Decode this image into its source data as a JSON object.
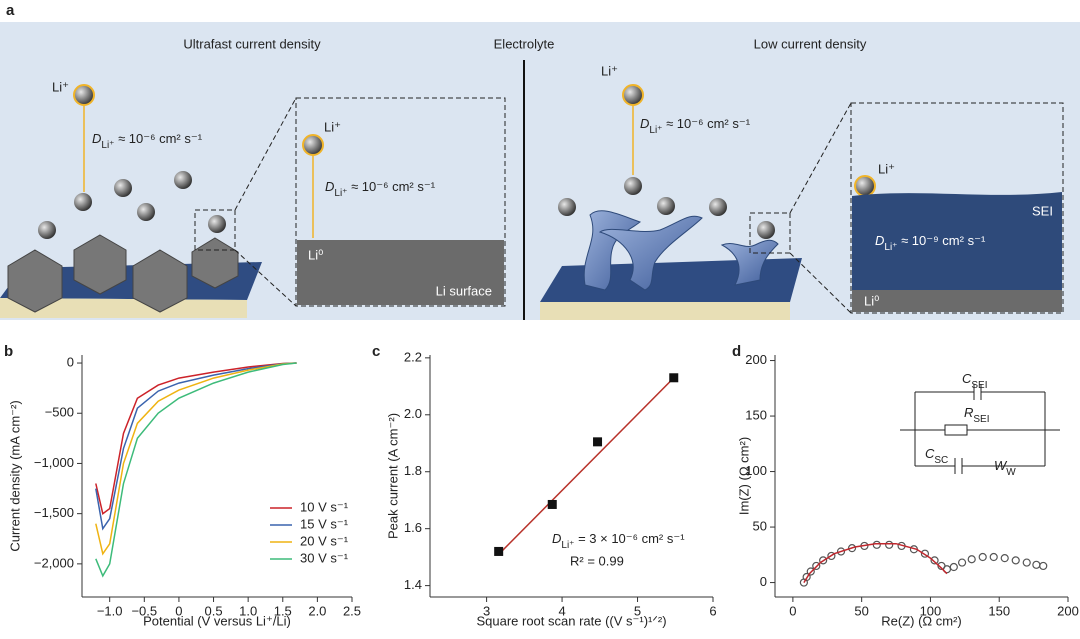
{
  "panel_a": {
    "label": "a",
    "left_title": "Ultrafast current density",
    "center_title": "Electrolyte",
    "right_title": "Low current density",
    "ion_labels": [
      "Li⁺",
      "Li⁺",
      "Li⁺",
      "Li⁺"
    ],
    "diffusion_labels": [
      {
        "symbol": "D",
        "subscript": "Li⁺",
        "rest": " ≈ 10⁻⁶ cm² s⁻¹"
      },
      {
        "symbol": "D",
        "subscript": "Li⁺",
        "rest": " ≈ 10⁻⁶ cm² s⁻¹"
      },
      {
        "symbol": "D",
        "subscript": "Li⁺",
        "rest": " ≈ 10⁻⁶ cm² s⁻¹"
      },
      {
        "symbol": "D",
        "subscript": "Li⁺",
        "rest": " ≈ 10⁻⁹ cm² s⁻¹"
      }
    ],
    "li0_labels": [
      "Li⁰",
      "Li⁰"
    ],
    "surface_label": "Li surface",
    "sei_label": "SEI"
  },
  "chart_data": [
    {
      "type": "line",
      "panel_label": "b",
      "xlabel": "Potential (V versus Li⁺/Li)",
      "ylabel": "Current density (mA cm⁻²)",
      "xlim": [
        -1.4,
        2.5
      ],
      "ylim": [
        -2330,
        80
      ],
      "xticks": [
        {
          "value": -1,
          "label": "−1.0"
        },
        {
          "value": -0.5,
          "label": "−0.5"
        },
        0,
        0.5,
        {
          "value": 1,
          "label": "1.0"
        },
        1.5,
        {
          "value": 2,
          "label": "2.0"
        },
        2.5
      ],
      "yticks": [
        0,
        {
          "value": -500,
          "label": "−500"
        },
        {
          "value": -1000,
          "label": "−1,000"
        },
        {
          "value": -1500,
          "label": "−1,500"
        },
        {
          "value": -2000,
          "label": "−2,000"
        }
      ],
      "legend": "lower right",
      "series": [
        {
          "name": "10 V s⁻¹",
          "color": "#cc2229",
          "x": [
            -1.2,
            -1.1,
            -1.0,
            -0.8,
            -0.6,
            -0.3,
            0,
            0.5,
            1.0,
            1.5,
            1.7
          ],
          "values": [
            -1200,
            -1500,
            -1450,
            -700,
            -350,
            -220,
            -150,
            -90,
            -40,
            -5,
            0
          ]
        },
        {
          "name": "15 V s⁻¹",
          "color": "#3a63ad",
          "x": [
            -1.2,
            -1.1,
            -1.0,
            -0.8,
            -0.6,
            -0.3,
            0,
            0.5,
            1.0,
            1.5,
            1.7
          ],
          "values": [
            -1250,
            -1650,
            -1550,
            -850,
            -450,
            -280,
            -200,
            -120,
            -55,
            -8,
            0
          ]
        },
        {
          "name": "20 V s⁻¹",
          "color": "#efb312",
          "x": [
            -1.2,
            -1.1,
            -1.0,
            -0.8,
            -0.6,
            -0.3,
            0,
            0.5,
            1.0,
            1.5,
            1.7
          ],
          "values": [
            -1600,
            -1900,
            -1800,
            -1000,
            -600,
            -380,
            -270,
            -150,
            -70,
            -10,
            0
          ]
        },
        {
          "name": "30 V s⁻¹",
          "color": "#3dbb7a",
          "x": [
            -1.2,
            -1.1,
            -1.0,
            -0.8,
            -0.6,
            -0.3,
            0,
            0.5,
            1.0,
            1.5,
            1.7
          ],
          "values": [
            -1950,
            -2120,
            -2000,
            -1200,
            -750,
            -500,
            -350,
            -200,
            -90,
            -15,
            0
          ]
        }
      ]
    },
    {
      "type": "scatter",
      "panel_label": "c",
      "xlabel": "Square root scan rate ((V s⁻¹)¹ᐟ²)",
      "ylabel": "Peak current (A cm⁻²)",
      "xlim": [
        2.25,
        6
      ],
      "ylim": [
        1.36,
        2.21
      ],
      "xticks": [
        3,
        4,
        5,
        6
      ],
      "yticks": [
        {
          "value": 1.4,
          "label": "1.4"
        },
        {
          "value": 1.6,
          "label": "1.6"
        },
        {
          "value": 1.8,
          "label": "1.8"
        },
        {
          "value": 2.0,
          "label": "2.0"
        },
        {
          "value": 2.2,
          "label": "2.2"
        }
      ],
      "series": [
        {
          "marker": "line",
          "color": "#b8322a",
          "x": [
            3.16,
            5.48
          ],
          "values": [
            1.51,
            2.13
          ]
        },
        {
          "marker": "square",
          "color": "#111111",
          "x": [
            3.16,
            3.87,
            4.47,
            5.48
          ],
          "values": [
            1.52,
            1.685,
            1.905,
            2.13
          ]
        }
      ],
      "annotations": [
        {
          "symbol": "D",
          "subscript": "Li⁺",
          "rest": " = 3 × 10⁻⁶ cm² s⁻¹"
        },
        "R² = 0.99"
      ]
    },
    {
      "type": "scatter",
      "panel_label": "d",
      "xlabel": "Re(Z) (Ω cm²)",
      "ylabel": "Im(Z) (Ω cm²)",
      "xlim": [
        -13,
        200
      ],
      "ylim": [
        -13,
        205
      ],
      "xticks": [
        0,
        50,
        100,
        150,
        200
      ],
      "yticks": [
        0,
        50,
        100,
        150,
        200
      ],
      "series": [
        {
          "marker": "circle",
          "color": "#555555",
          "x": [
            8,
            10,
            13,
            17,
            22,
            28,
            35,
            43,
            52,
            61,
            70,
            79,
            88,
            96,
            103,
            108,
            112,
            117,
            123,
            130,
            138,
            146,
            154,
            162,
            170,
            177,
            182
          ],
          "values": [
            0,
            5,
            10,
            15,
            20,
            24,
            28,
            31,
            33,
            34,
            34,
            33,
            30,
            26,
            20,
            15,
            12,
            14,
            18,
            21,
            23,
            23,
            22,
            20,
            18,
            16,
            15
          ]
        },
        {
          "marker": "line",
          "color": "#c0272d",
          "x": [
            8,
            12,
            20,
            30,
            45,
            60,
            75,
            90,
            100,
            108,
            112
          ],
          "values": [
            0,
            8,
            18,
            26,
            32,
            35,
            35,
            30,
            22,
            13,
            8
          ]
        }
      ],
      "circuit_labels": [
        {
          "symbol": "C",
          "subscript": "SEI"
        },
        {
          "symbol": "R",
          "subscript": "SEI"
        },
        {
          "symbol": "C",
          "subscript": "SC"
        },
        {
          "symbol": "W",
          "subscript": "W"
        }
      ]
    }
  ]
}
